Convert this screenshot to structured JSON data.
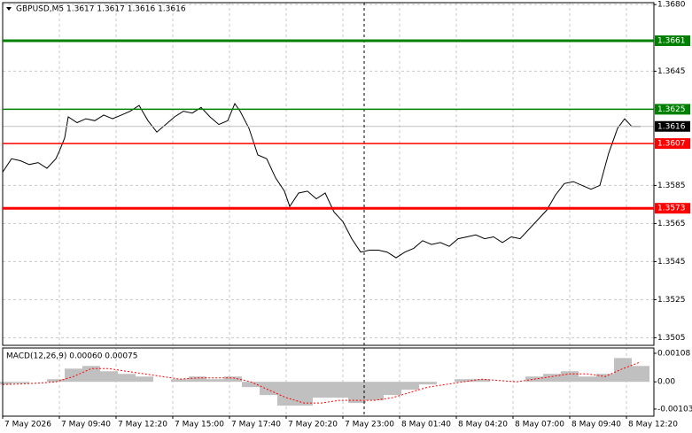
{
  "chart_data": [
    {
      "type": "line",
      "title": "GBPUSD,M5  1.3617 1.3617 1.3616 1.3616",
      "x": [
        0,
        5,
        10,
        15,
        20,
        25,
        30,
        32,
        35,
        37,
        42,
        47,
        52,
        57,
        62,
        67,
        72,
        77,
        82,
        87,
        92,
        97,
        102,
        107,
        112,
        117,
        122,
        127,
        131,
        134,
        139,
        144,
        149,
        154,
        159,
        162,
        167,
        172,
        177,
        182,
        187,
        192,
        197,
        202,
        207,
        212,
        217,
        222,
        227,
        232,
        237,
        242,
        247,
        252,
        257,
        262,
        267,
        272,
        277,
        282,
        287,
        292,
        297,
        302,
        307,
        312,
        317,
        322,
        327,
        332,
        337,
        342,
        347,
        351,
        355,
        360
      ],
      "values": [
        1.3592,
        1.3599,
        1.3598,
        1.3596,
        1.3597,
        1.3594,
        1.3599,
        1.3603,
        1.361,
        1.3621,
        1.3618,
        1.362,
        1.3619,
        1.3622,
        1.362,
        1.3622,
        1.3624,
        1.3627,
        1.3619,
        1.3613,
        1.3617,
        1.3621,
        1.3624,
        1.3623,
        1.3626,
        1.3621,
        1.3617,
        1.3619,
        1.3628,
        1.3624,
        1.3615,
        1.3601,
        1.3599,
        1.3589,
        1.3582,
        1.3574,
        1.3581,
        1.3582,
        1.3578,
        1.3581,
        1.3571,
        1.3566,
        1.3557,
        1.355,
        1.3551,
        1.3551,
        1.355,
        1.3547,
        1.355,
        1.3552,
        1.3556,
        1.3554,
        1.3555,
        1.3553,
        1.3557,
        1.3558,
        1.3559,
        1.3557,
        1.3558,
        1.3555,
        1.3558,
        1.3557,
        1.3562,
        1.3567,
        1.3572,
        1.358,
        1.3586,
        1.3587,
        1.3585,
        1.3583,
        1.3585,
        1.3602,
        1.3615,
        1.362,
        1.3616,
        1.3616
      ],
      "color": "#000000",
      "xlim": [
        0,
        367.5
      ],
      "ylim": [
        1.3501,
        1.3681
      ],
      "yticks": [
        {
          "value": 1.368,
          "label": "1.3680"
        },
        1.3645,
        1.3585,
        1.3565,
        1.3545,
        1.3525,
        1.3505
      ],
      "grid": true,
      "levels": [
        {
          "value": 1.3661,
          "color": "#008000",
          "thick": true
        },
        {
          "value": 1.3625,
          "color": "#008000",
          "thick": false
        },
        {
          "value": 1.3607,
          "color": "#ff0000",
          "thick": false
        },
        {
          "value": 1.3573,
          "color": "#ff0000",
          "thick": true
        }
      ],
      "current_price": 1.3616
    },
    {
      "type": "macd",
      "title": "MACD(12,26,9) 0.00060 0.00075",
      "x": [
        0,
        10,
        20,
        30,
        40,
        50,
        60,
        70,
        80,
        90,
        100,
        110,
        120,
        130,
        140,
        150,
        160,
        170,
        180,
        190,
        200,
        210,
        220,
        230,
        240,
        250,
        260,
        270,
        280,
        290,
        300,
        310,
        320,
        330,
        340,
        350,
        360
      ],
      "values": [
        -0.0001,
        -5e-05,
        0.0,
        0.0001,
        0.0005,
        0.0006,
        0.0004,
        0.0003,
        0.0002,
        0.0,
        0.0001,
        0.0002,
        0.0001,
        0.0002,
        -0.0002,
        -0.0005,
        -0.0009,
        -0.0009,
        -0.0006,
        -0.0006,
        -0.0008,
        -0.0007,
        -0.0005,
        -0.0003,
        -0.0001,
        0.0,
        0.0001,
        0.0001,
        0.0,
        0.0,
        0.0002,
        0.0003,
        0.0004,
        0.0002,
        0.0003,
        0.0009,
        0.0006
      ],
      "color": "#c0c0c0",
      "signal": [
        -0.0001,
        -8e-05,
        -5e-05,
        0.0,
        0.0002,
        0.0005,
        0.0005,
        0.0004,
        0.0003,
        0.0002,
        0.0001,
        0.00015,
        0.00015,
        0.00015,
        0.0,
        -0.0003,
        -0.0006,
        -0.0008,
        -0.0008,
        -0.0007,
        -0.0007,
        -0.0007,
        -0.0006,
        -0.0004,
        -0.0002,
        -0.0001,
        0.0,
        0.0001,
        5e-05,
        0.0,
        0.0001,
        0.0002,
        0.0003,
        0.0003,
        0.0002,
        0.0005,
        0.00075
      ],
      "signal_color": "#ff0000",
      "xlim": [
        0,
        367.5
      ],
      "ylim": [
        -0.0013,
        0.00128
      ],
      "yticks": [
        0.00108,
        {
          "value": 0,
          "label": "0.00"
        },
        -0.00103
      ],
      "xticks": [
        {
          "value": 0,
          "label": "7 May 2026"
        },
        {
          "value": 32,
          "label": "7 May 09:40"
        },
        {
          "value": 64,
          "label": "7 May 12:20"
        },
        {
          "value": 96,
          "label": "7 May 15:00"
        },
        {
          "value": 128,
          "label": "7 May 17:40"
        },
        {
          "value": 160,
          "label": "7 May 20:20"
        },
        {
          "value": 192,
          "label": "7 May 23:00"
        },
        {
          "value": 224,
          "label": "8 May 01:40"
        },
        {
          "value": 256,
          "label": "8 May 04:20"
        },
        {
          "value": 288,
          "label": "8 May 07:00"
        },
        {
          "value": 320,
          "label": "8 May 09:40"
        },
        {
          "value": 352,
          "label": "8 May 12:20"
        }
      ]
    }
  ]
}
